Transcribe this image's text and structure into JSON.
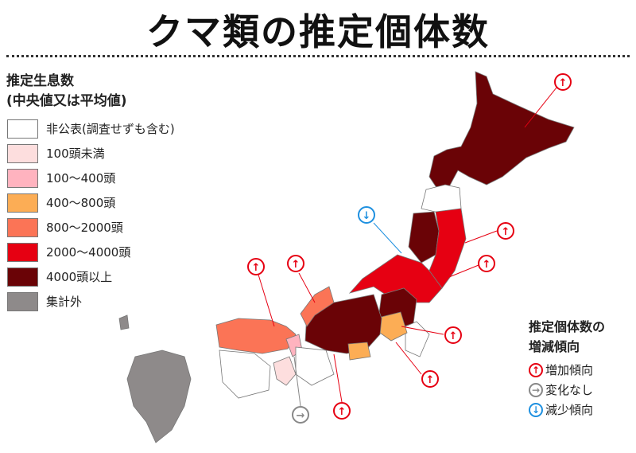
{
  "title": "クマ類の推定個体数",
  "legend": {
    "heading_line1": "推定生息数",
    "heading_line2": "(中央値又は平均値)",
    "items": [
      {
        "label": "非公表(調査せずも含む)",
        "color": "#ffffff"
      },
      {
        "label": "100頭未満",
        "color": "#fddede"
      },
      {
        "label": "100〜400頭",
        "color": "#ffb3bf"
      },
      {
        "label": "400〜800頭",
        "color": "#fcad55"
      },
      {
        "label": "800〜2000頭",
        "color": "#fb7456"
      },
      {
        "label": "2000〜4000頭",
        "color": "#e60012"
      },
      {
        "label": "4000頭以上",
        "color": "#6a0306"
      },
      {
        "label": "集計外",
        "color": "#8e8a8a"
      }
    ]
  },
  "trend_legend": {
    "heading_line1": "推定個体数の",
    "heading_line2": "増減傾向",
    "items": [
      {
        "label": "増加傾向",
        "icon": "arrow-up-icon",
        "color": "#e60012",
        "glyph": "↑"
      },
      {
        "label": "変化なし",
        "icon": "arrow-right-icon",
        "color": "#888888",
        "glyph": "→"
      },
      {
        "label": "減少傾向",
        "icon": "arrow-down-icon",
        "color": "#1e90e0",
        "glyph": "↓"
      }
    ]
  }
}
